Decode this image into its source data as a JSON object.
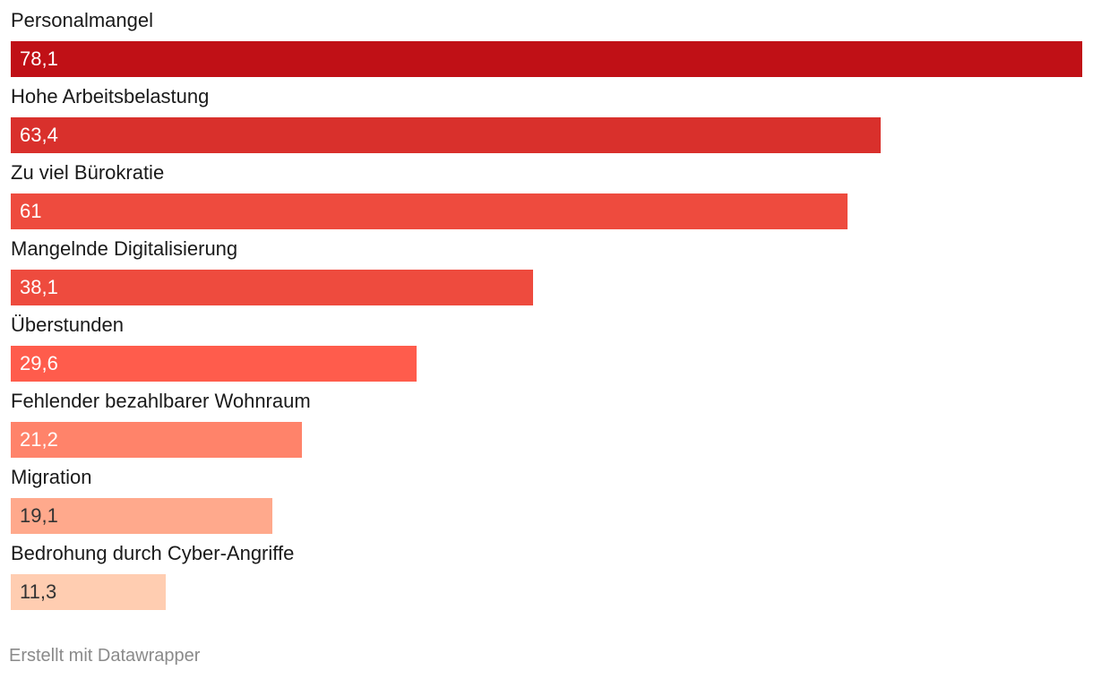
{
  "chart_data": {
    "type": "bar",
    "orientation": "horizontal",
    "categories": [
      "Personalmangel",
      "Hohe Arbeitsbelastung",
      "Zu viel Bürokratie",
      "Mangelnde Digitalisierung",
      "Überstunden",
      "Fehlender bezahlbarer Wohnraum",
      "Migration",
      "Bedrohung durch Cyber-Angriffe"
    ],
    "values": [
      78.1,
      63.4,
      61,
      38.1,
      29.6,
      21.2,
      19.1,
      11.3
    ],
    "value_labels": [
      "78,1",
      "63,4",
      "61",
      "38,1",
      "29,6",
      "21,2",
      "19,1",
      "11,3"
    ],
    "colors": [
      "#c01016",
      "#d9302c",
      "#ee4b3e",
      "#ee4b3e",
      "#ff5c4c",
      "#ff836a",
      "#ffa98c",
      "#ffcdb1"
    ],
    "label_colors": [
      "#ffffff",
      "#ffffff",
      "#ffffff",
      "#ffffff",
      "#ffffff",
      "#ffffff",
      "#333333",
      "#333333"
    ],
    "xlim": [
      0,
      78.1
    ],
    "grid": false,
    "title": "",
    "xlabel": "",
    "ylabel": ""
  },
  "footer": {
    "credit": "Erstellt mit Datawrapper"
  }
}
